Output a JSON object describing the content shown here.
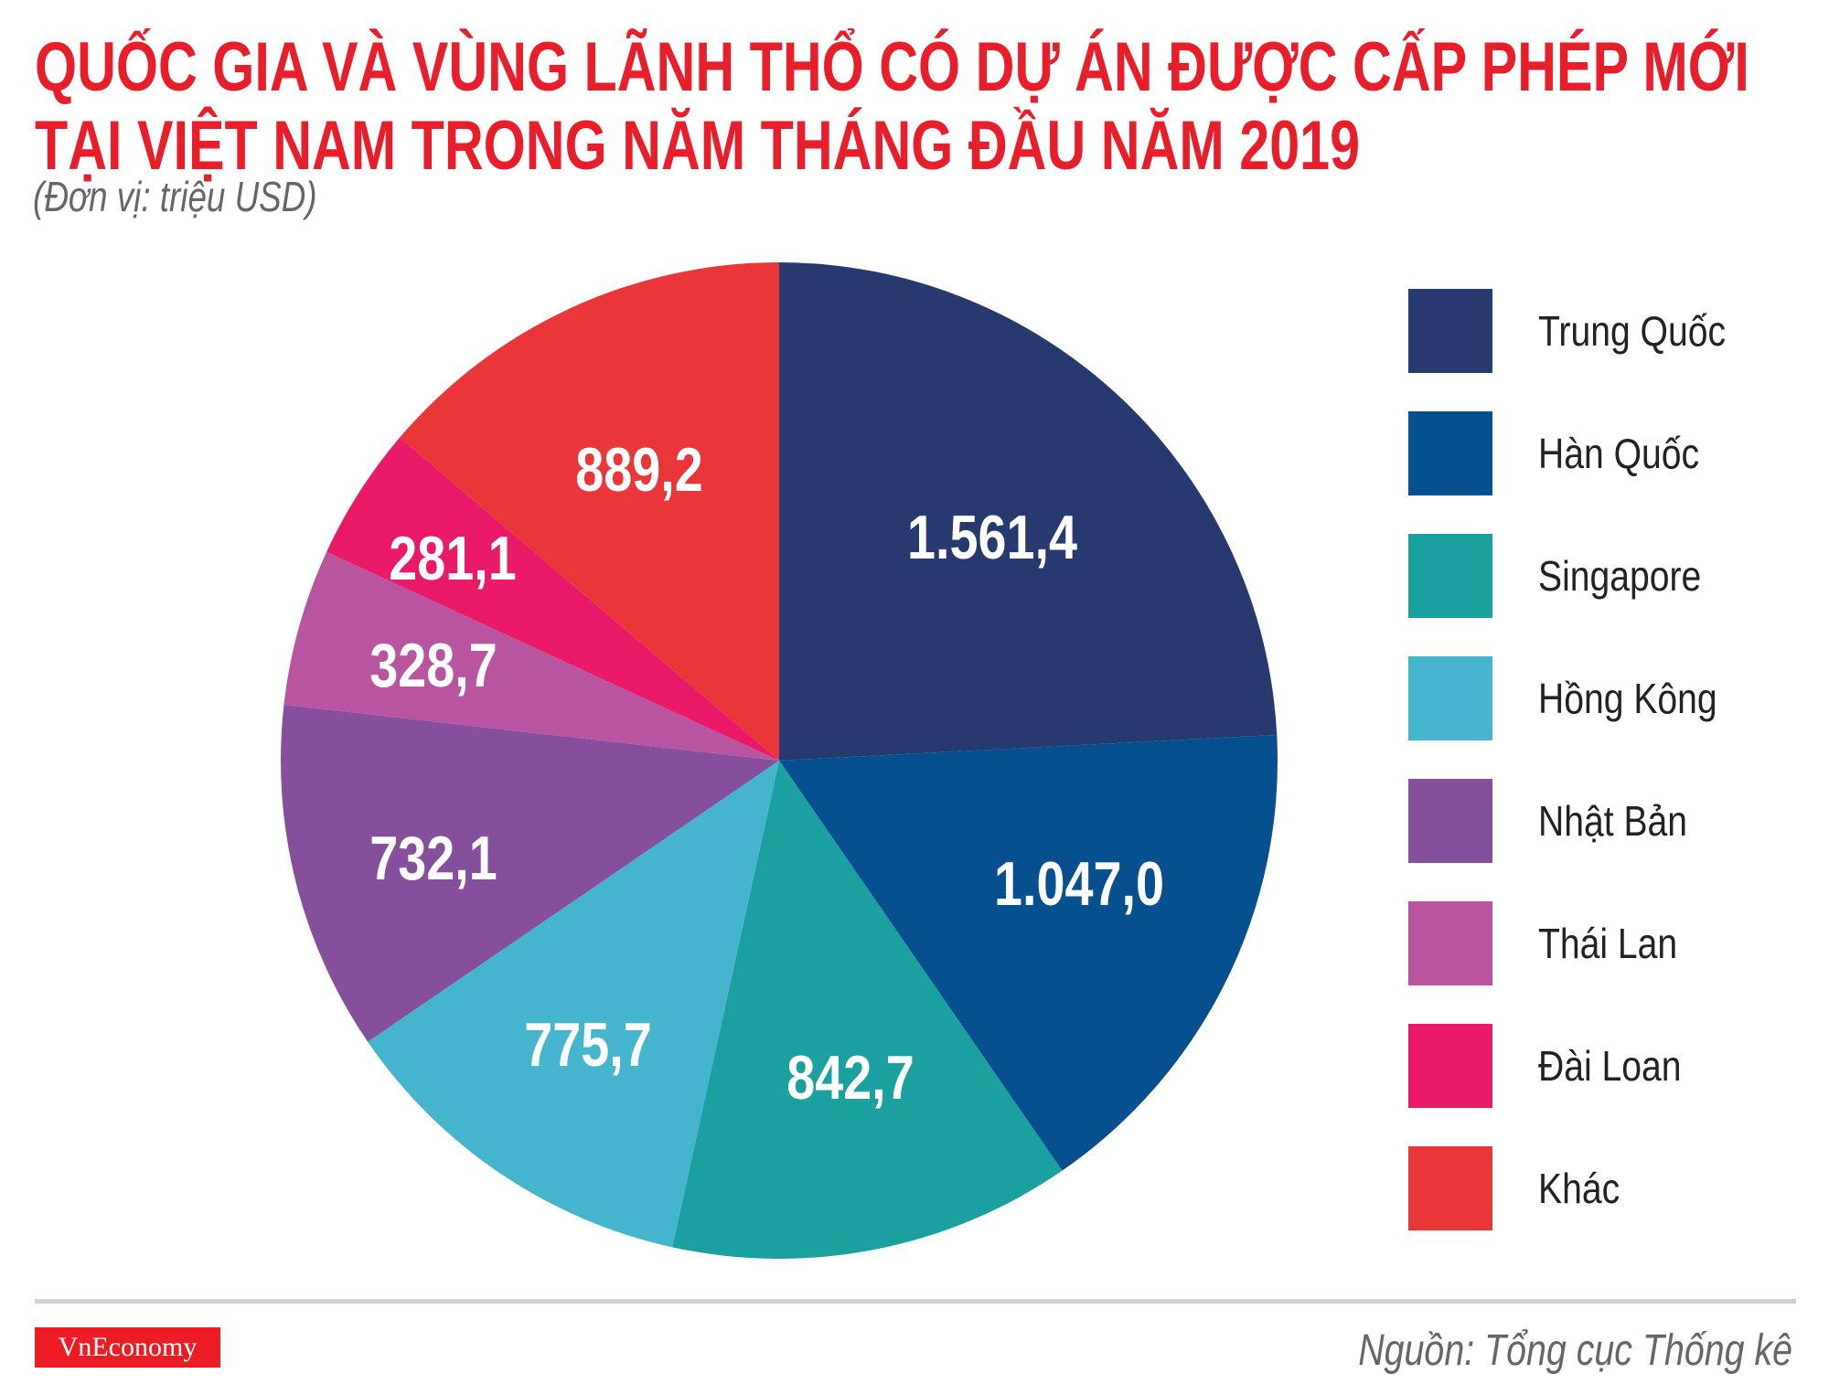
{
  "chart_data": {
    "type": "pie",
    "title": [
      "QUỐC GIA VÀ VÙNG LÃNH THỔ CÓ DỰ ÁN ĐƯỢC CẤP PHÉP MỚI",
      "TẠI VIỆT NAM TRONG NĂM THÁNG ĐẦU NĂM 2019"
    ],
    "subtitle": "(Đơn vị: triệu USD)",
    "legend_position": "right",
    "slices": [
      {
        "label": "Trung Quốc",
        "value": 1561.4,
        "value_label": "1.561,4",
        "color": "#263a70"
      },
      {
        "label": "Hàn Quốc",
        "value": 1047.0,
        "value_label": "1.047,0",
        "color": "#07508f"
      },
      {
        "label": "Singapore",
        "value": 842.7,
        "value_label": "842,7",
        "color": "#1aa19f"
      },
      {
        "label": "Hồng Kông",
        "value": 775.7,
        "value_label": "775,7",
        "color": "#45b5ce"
      },
      {
        "label": "Nhật Bản",
        "value": 732.1,
        "value_label": "732,1",
        "color": "#854f9c"
      },
      {
        "label": "Thái Lan",
        "value": 328.7,
        "value_label": "328,7",
        "color": "#b854a0"
      },
      {
        "label": "Đài Loan",
        "value": 281.1,
        "value_label": "281,1",
        "color": "#ea1a68"
      },
      {
        "label": "Khác",
        "value": 889.2,
        "value_label": "889,2",
        "color": "#ea3539"
      }
    ]
  },
  "footer": {
    "logo": "VnEconomy",
    "source": "Nguồn: Tổng cục Thống kê"
  },
  "colors": {
    "title": "#e81e2a",
    "logo_bg": "#ed1c24"
  }
}
